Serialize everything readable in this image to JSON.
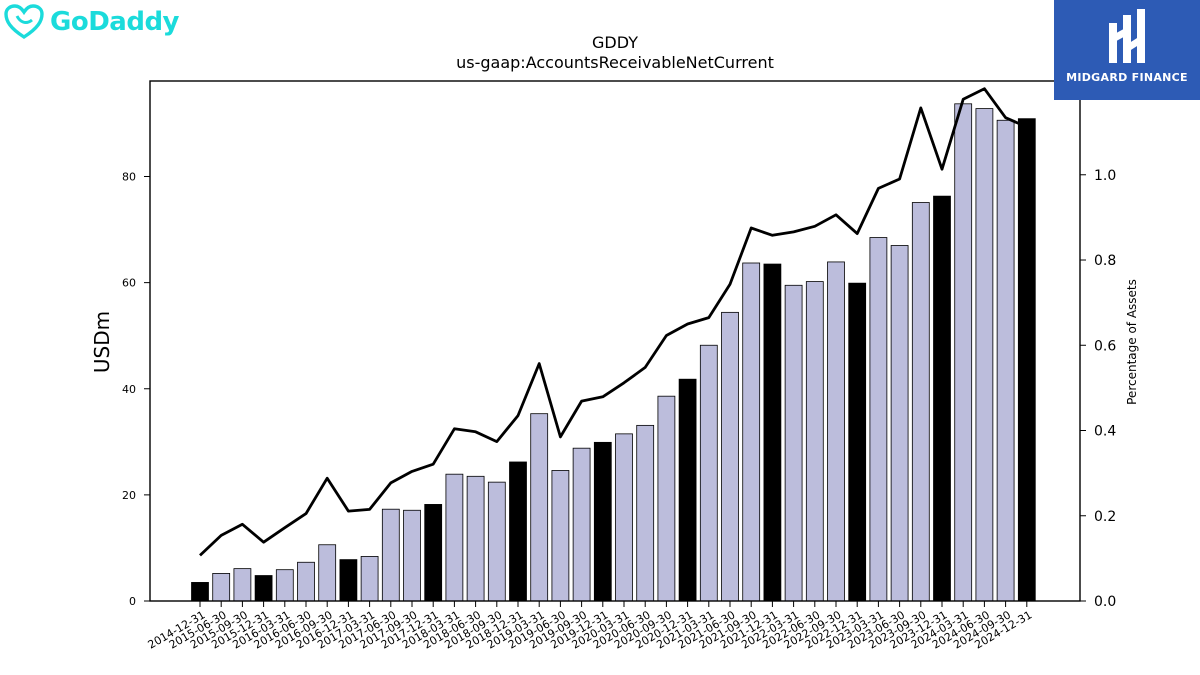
{
  "brand": {
    "logo_text": "GoDaddy",
    "color": "#1bdbdb"
  },
  "watermark": {
    "text": "MIDGARD FINANCE",
    "background": "#2d5bb5"
  },
  "chart_data": {
    "type": "bar",
    "title": "GDDY",
    "subtitle": "us-gaap:AccountsReceivableNetCurrent",
    "ylabel": "USDm",
    "ylabel_right": "Percentage of Assets",
    "ylim": [
      0,
      98
    ],
    "ylim_right": [
      0,
      1.22
    ],
    "yticks": [
      0,
      20,
      40,
      60,
      80
    ],
    "yticks_right": [
      "0.0",
      "0.2",
      "0.4",
      "0.6",
      "0.8",
      "1.0",
      "1.2"
    ],
    "grid": false,
    "bar_colors": {
      "quarter": "#bcbddc",
      "year_end": "#000000"
    },
    "categories": [
      "2014-12-31",
      "2015-06-30",
      "2015-09-30",
      "2015-12-31",
      "2016-03-31",
      "2016-06-30",
      "2016-09-30",
      "2016-12-31",
      "2017-03-31",
      "2017-06-30",
      "2017-09-30",
      "2017-12-31",
      "2018-03-31",
      "2018-06-30",
      "2018-09-30",
      "2018-12-31",
      "2019-03-31",
      "2019-06-30",
      "2019-09-30",
      "2019-12-31",
      "2020-03-31",
      "2020-06-30",
      "2020-09-30",
      "2020-12-31",
      "2021-03-31",
      "2021-06-30",
      "2021-09-30",
      "2021-12-31",
      "2022-03-31",
      "2022-06-30",
      "2022-09-30",
      "2022-12-31",
      "2023-03-31",
      "2023-06-30",
      "2023-09-30",
      "2023-12-31",
      "2024-03-31",
      "2024-06-30",
      "2024-09-30",
      "2024-12-31"
    ],
    "series": [
      {
        "type": "bar",
        "values": [
          3.5,
          5.2,
          6.1,
          4.8,
          5.9,
          7.3,
          10.6,
          7.8,
          8.4,
          17.3,
          17.1,
          18.2,
          23.9,
          23.5,
          22.4,
          26.2,
          35.3,
          24.6,
          28.8,
          29.9,
          31.5,
          33.1,
          38.6,
          41.8,
          48.2,
          54.4,
          63.7,
          63.5,
          59.5,
          60.2,
          63.9,
          59.9,
          68.5,
          67.0,
          75.1,
          76.3,
          93.7,
          92.8,
          90.6,
          90.9
        ]
      },
      {
        "type": "line",
        "axis": "right",
        "values": [
          0.107,
          0.154,
          0.18,
          0.138,
          0.172,
          0.205,
          0.288,
          0.211,
          0.215,
          0.277,
          0.304,
          0.321,
          0.404,
          0.397,
          0.374,
          0.435,
          0.557,
          0.385,
          0.469,
          0.479,
          0.512,
          0.548,
          0.623,
          0.65,
          0.665,
          0.743,
          0.875,
          0.858,
          0.866,
          0.879,
          0.906,
          0.862,
          0.968,
          0.99,
          1.157,
          1.013,
          1.177,
          1.202,
          1.134,
          1.112
        ]
      }
    ]
  }
}
